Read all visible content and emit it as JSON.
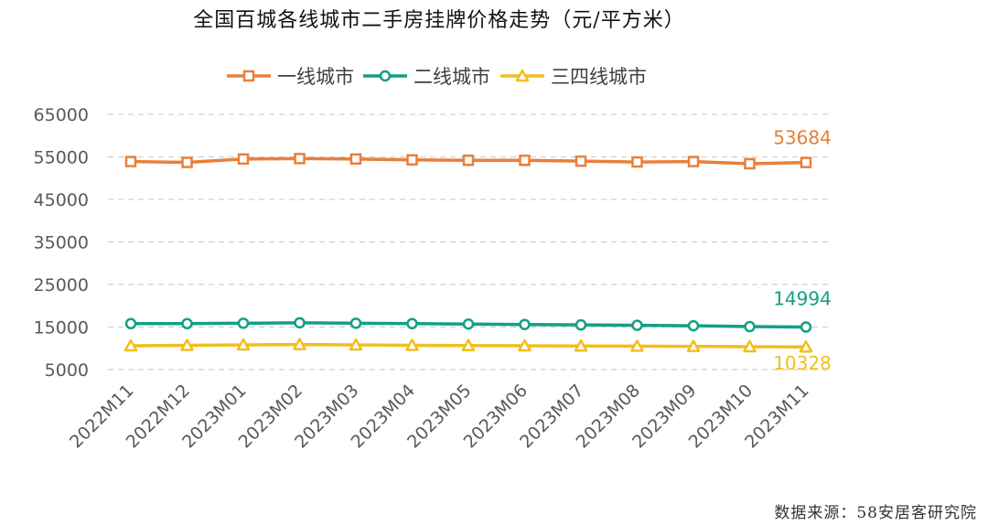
{
  "chart_data": {
    "type": "line",
    "title": "全国百城各线城市二手房挂牌价格走势（元/平方米）",
    "categories": [
      "2022M11",
      "2022M12",
      "2023M01",
      "2023M02",
      "2023M03",
      "2023M04",
      "2023M05",
      "2023M06",
      "2023M07",
      "2023M08",
      "2023M09",
      "2023M10",
      "2023M11"
    ],
    "series": [
      {
        "name": "一线城市",
        "color": "#E8803A",
        "marker": "square",
        "values": [
          53900,
          53700,
          54500,
          54600,
          54500,
          54300,
          54200,
          54200,
          54000,
          53800,
          53900,
          53400,
          53684
        ],
        "end_label": "53684"
      },
      {
        "name": "二线城市",
        "color": "#13A085",
        "marker": "circle",
        "values": [
          15800,
          15800,
          15900,
          16000,
          15900,
          15800,
          15700,
          15600,
          15500,
          15400,
          15300,
          15100,
          14994
        ],
        "end_label": "14994"
      },
      {
        "name": "三四线城市",
        "color": "#F2BE1D",
        "marker": "triangle",
        "values": [
          10600,
          10700,
          10800,
          10900,
          10800,
          10700,
          10650,
          10600,
          10550,
          10500,
          10450,
          10380,
          10328
        ],
        "end_label": "10328"
      }
    ],
    "yticks": [
      5000,
      15000,
      25000,
      35000,
      45000,
      55000,
      65000
    ],
    "ylim": [
      5000,
      65000
    ],
    "grid": true,
    "legend": "top-center"
  },
  "source": "数据来源：58安居客研究院"
}
